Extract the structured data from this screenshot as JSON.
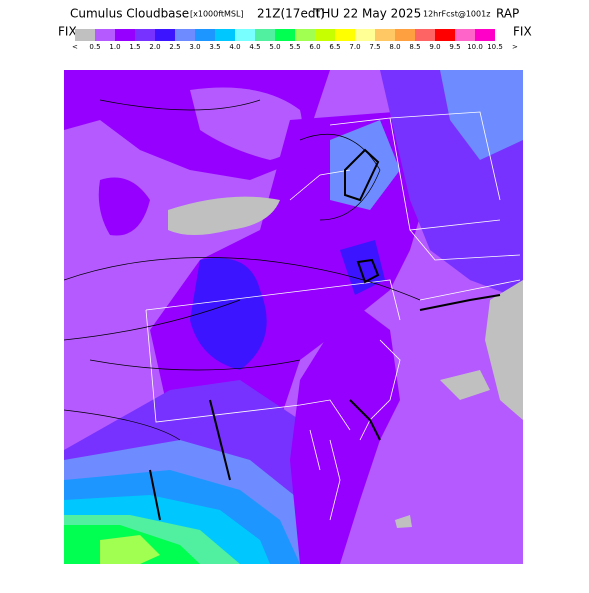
{
  "header": {
    "title": "Cumulus Cloudbase",
    "units": "[x1000ftMSL]",
    "time": "21Z(17edt)",
    "date": "THU 22 May 2025",
    "forecast": "12hrFcst@1001z",
    "model": "RAP"
  },
  "colorbar": {
    "left_label": "FIX",
    "right_label": "FIX",
    "left_arrow": "<",
    "right_arrow": ">",
    "colors": [
      "#c0c0c0",
      "#b45aff",
      "#9600ff",
      "#7832ff",
      "#3c14ff",
      "#6e8cff",
      "#1e96ff",
      "#00c8ff",
      "#78ffff",
      "#50f0a0",
      "#00ff50",
      "#a0ff50",
      "#c8ff00",
      "#ffff00",
      "#ffff96",
      "#ffc864",
      "#ffa040",
      "#ff6464",
      "#ff0000",
      "#ff64c8",
      "#ff00c8"
    ],
    "labels": [
      "0.5",
      "1.0",
      "1.5",
      "2.0",
      "2.5",
      "3.0",
      "3.5",
      "4.0",
      "4.5",
      "5.0",
      "5.5",
      "6.0",
      "6.5",
      "7.0",
      "7.5",
      "8.0",
      "8.5",
      "9.0",
      "9.5",
      "10.0",
      "10.5"
    ]
  }
}
